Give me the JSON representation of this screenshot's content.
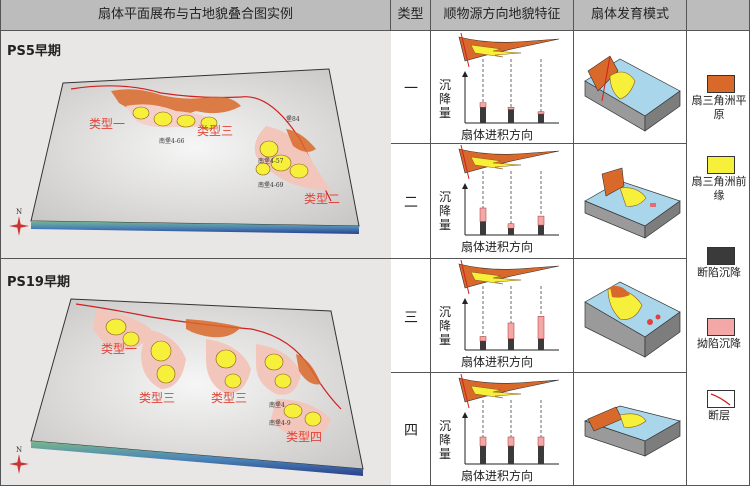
{
  "headers": {
    "map": "扇体平面展布与古地貌叠合图实例",
    "type": "类型",
    "feature": "顺物源方向地貌特征",
    "mode": "扇体发育模式"
  },
  "panels": [
    {
      "title": "PS5早期",
      "labels": [
        "类型一",
        "类型三",
        "类型二"
      ],
      "wells": [
        "南堡4-66",
        "南堡4-57",
        "南堡4-69",
        "堡84"
      ]
    },
    {
      "title": "PS19早期",
      "labels": [
        "类型一",
        "类型三",
        "类型三",
        "类型四"
      ],
      "wells": [
        "南堡4",
        "南堡4-9"
      ]
    }
  ],
  "rows": [
    {
      "type": "一",
      "subsidence": [
        [
          0.35,
          0.1
        ],
        [
          0.3,
          0.05
        ],
        [
          0.2,
          0.05
        ]
      ]
    },
    {
      "type": "二",
      "subsidence": [
        [
          0.3,
          0.3
        ],
        [
          0.15,
          0.1
        ],
        [
          0.22,
          0.2
        ]
      ]
    },
    {
      "type": "三",
      "subsidence": [
        [
          0.2,
          0.1
        ],
        [
          0.25,
          0.35
        ],
        [
          0.25,
          0.5
        ]
      ]
    },
    {
      "type": "四",
      "subsidence": [
        [
          0.4,
          0.2
        ],
        [
          0.4,
          0.2
        ],
        [
          0.4,
          0.2
        ]
      ]
    }
  ],
  "chart_axis": {
    "ylabel": "沉降量",
    "xlabel": "扇体进积方向"
  },
  "legend": [
    {
      "label": "扇三角洲平原",
      "color": "#d9692a"
    },
    {
      "label": "扇三角洲前缘",
      "color": "#f7f03a"
    },
    {
      "label": "断陷沉降",
      "color": "#3a3a3a"
    },
    {
      "label": "拗陷沉降",
      "color": "#f3a7a7"
    },
    {
      "label": "断层",
      "color": "#ffffff"
    }
  ],
  "colors": {
    "sea": "#a9d6ea",
    "relief": "#d6d4d2",
    "label": "#e0453a",
    "fault": "#d02020"
  }
}
